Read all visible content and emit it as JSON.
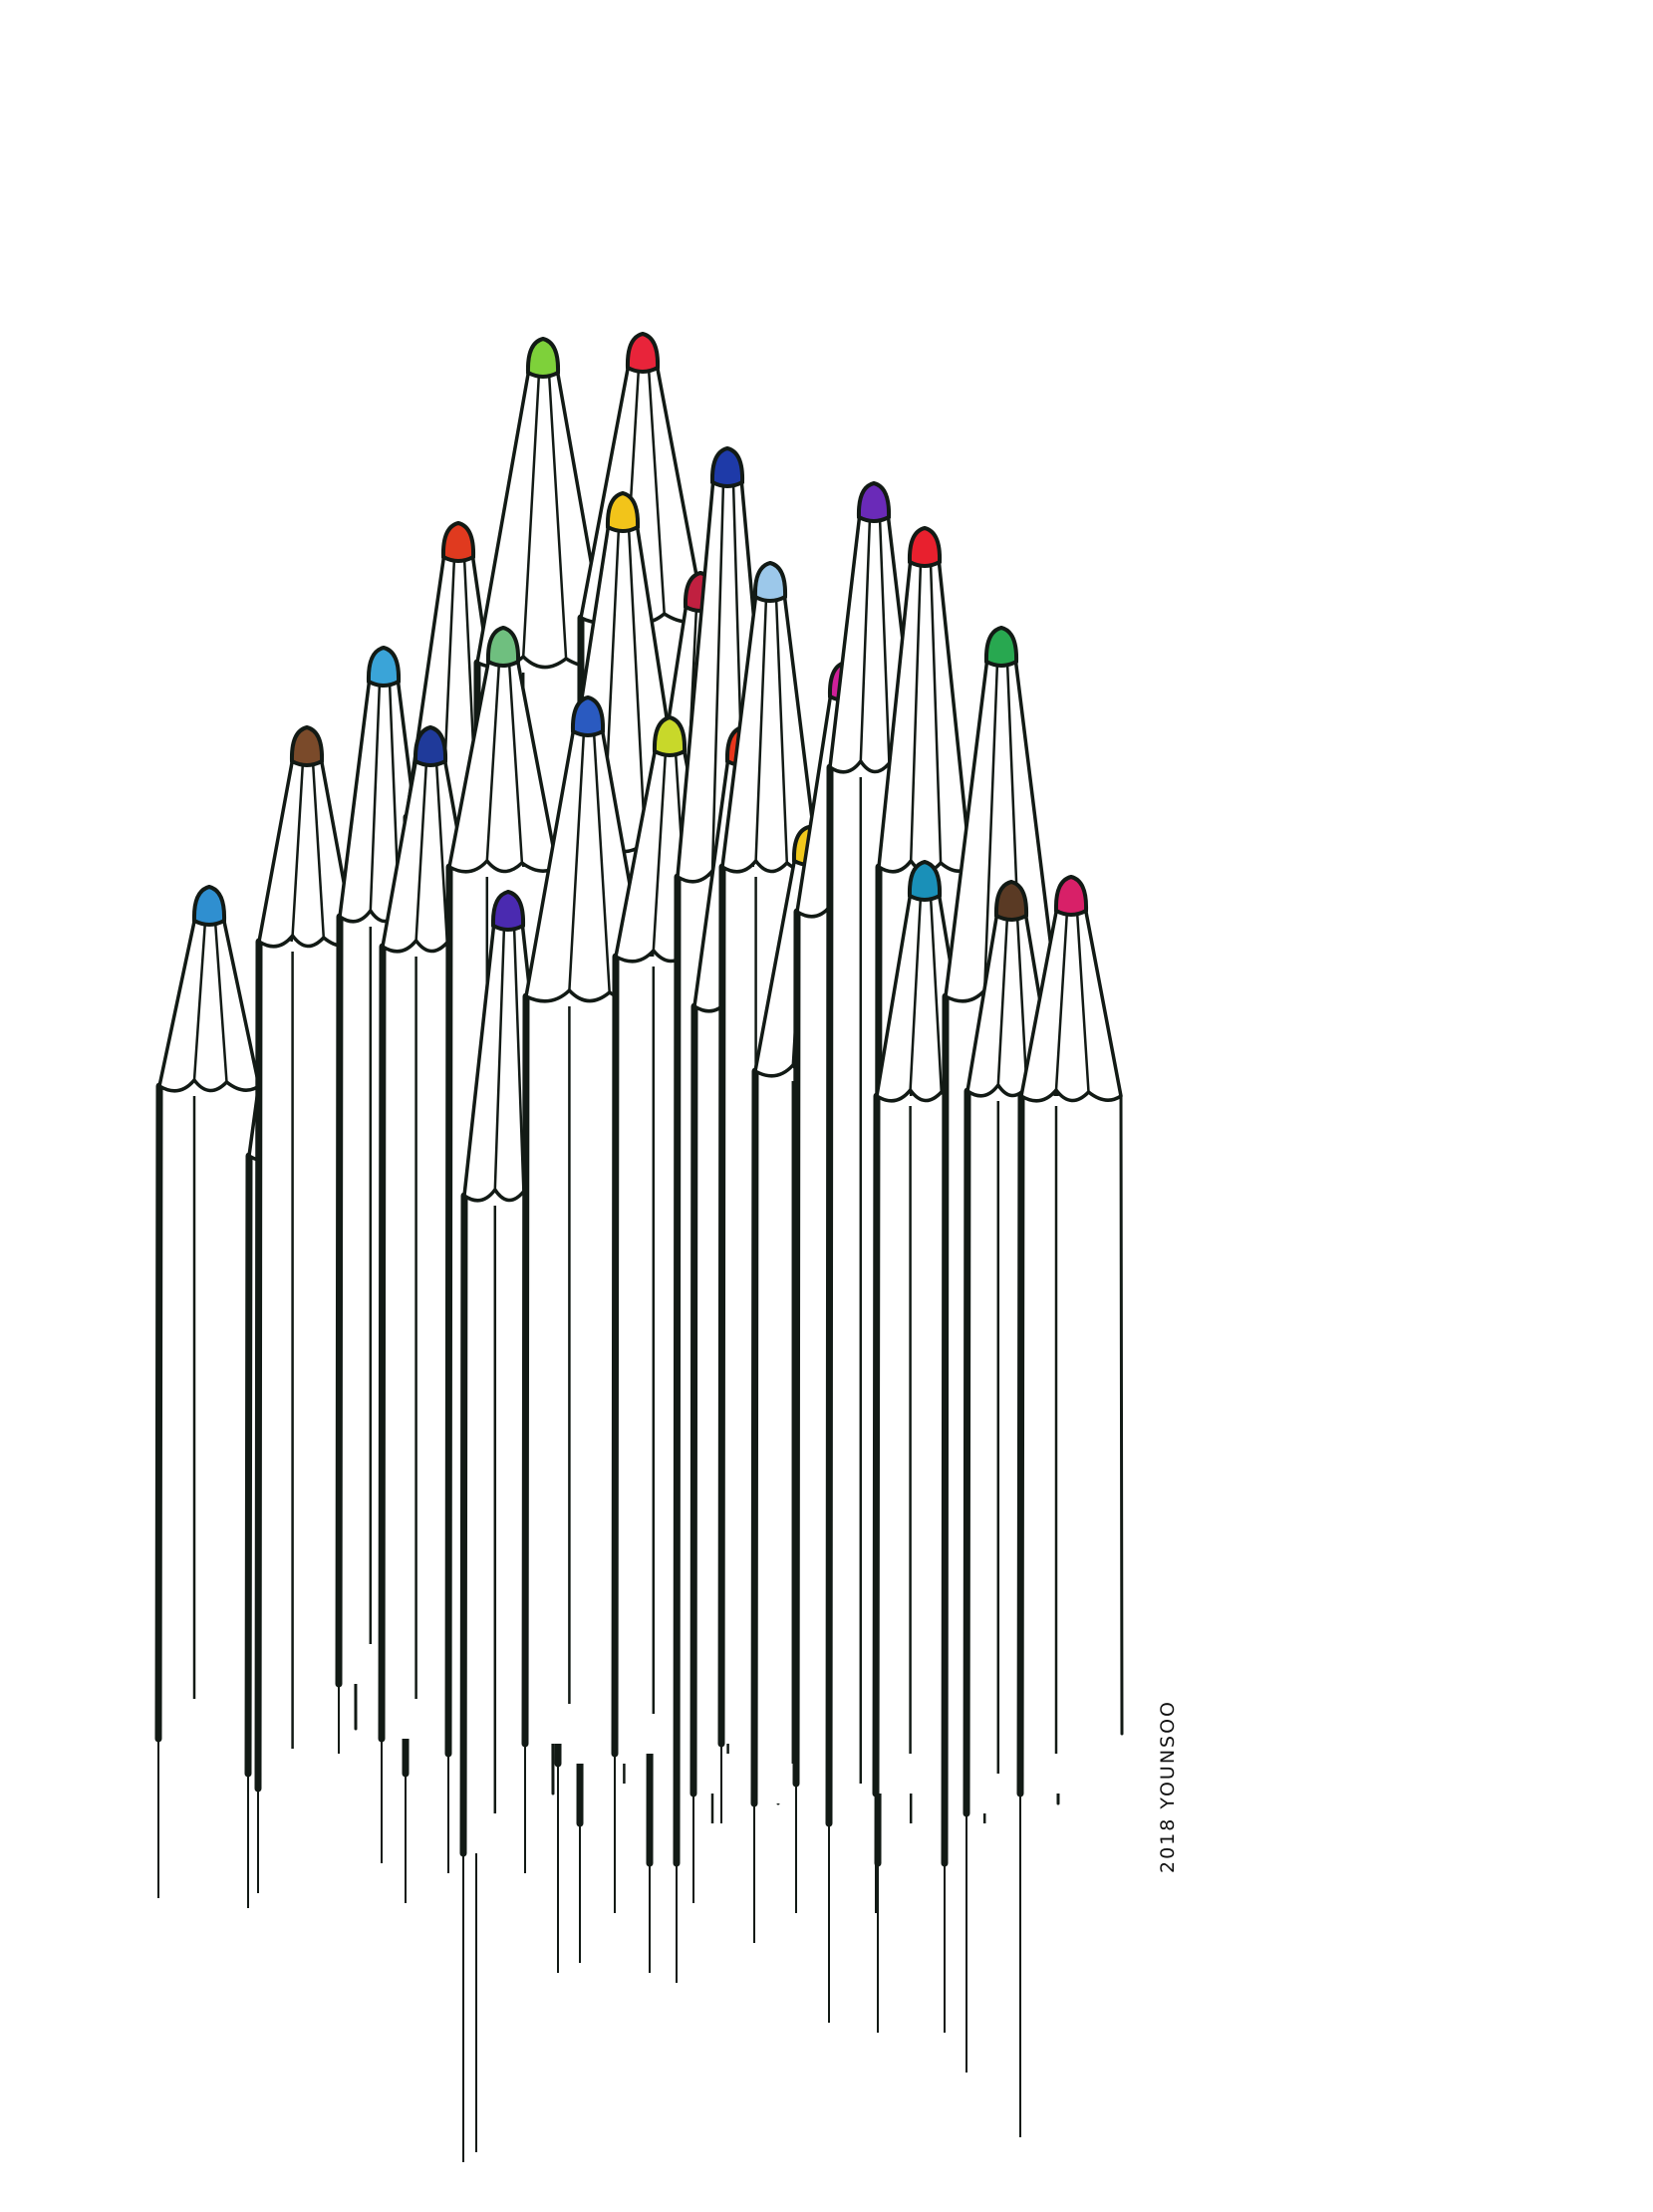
{
  "artwork": {
    "signature": "2018 YOUNSOO",
    "ink_color": "#121a15",
    "paper_color": "#ffffff",
    "pencils": [
      {
        "tip_color": "#2f8fd0",
        "tip_name": "blue-tip"
      },
      {
        "tip_color": "#e8202a",
        "tip_name": "red-tip"
      },
      {
        "tip_color": "#7a4a2a",
        "tip_name": "brown-tip"
      },
      {
        "tip_color": "#3aa4d8",
        "tip_name": "sky-blue-tip"
      },
      {
        "tip_color": "#e03a1f",
        "tip_name": "orange-red-tip"
      },
      {
        "tip_color": "#1f3a9a",
        "tip_name": "navy-tip"
      },
      {
        "tip_color": "#7ed13a",
        "tip_name": "lime-green-tip"
      },
      {
        "tip_color": "#6fbf7f",
        "tip_name": "mint-green-tip"
      },
      {
        "tip_color": "#4a2ab0",
        "tip_name": "violet-tip"
      },
      {
        "tip_color": "#e8243a",
        "tip_name": "crimson-tip"
      },
      {
        "tip_color": "#f2c41a",
        "tip_name": "yellow-tip"
      },
      {
        "tip_color": "#2a5ac0",
        "tip_name": "royal-blue-tip"
      },
      {
        "tip_color": "#c02040",
        "tip_name": "dark-red-tip"
      },
      {
        "tip_color": "#c8d82a",
        "tip_name": "yellow-green-tip"
      },
      {
        "tip_color": "#1e3aa8",
        "tip_name": "cobalt-tip"
      },
      {
        "tip_color": "#e8361c",
        "tip_name": "vermilion-tip"
      },
      {
        "tip_color": "#9cc8ea",
        "tip_name": "light-blue-tip"
      },
      {
        "tip_color": "#f0c81c",
        "tip_name": "gold-tip"
      },
      {
        "tip_color": "#d0209a",
        "tip_name": "magenta-tip"
      },
      {
        "tip_color": "#6a2ab8",
        "tip_name": "purple-tip"
      },
      {
        "tip_color": "#e8202e",
        "tip_name": "scarlet-tip"
      },
      {
        "tip_color": "#1a90b8",
        "tip_name": "teal-tip"
      },
      {
        "tip_color": "#28a850",
        "tip_name": "green-tip"
      },
      {
        "tip_color": "#5a3a24",
        "tip_name": "dark-brown-tip"
      },
      {
        "tip_color": "#d82068",
        "tip_name": "pink-tip"
      }
    ]
  }
}
